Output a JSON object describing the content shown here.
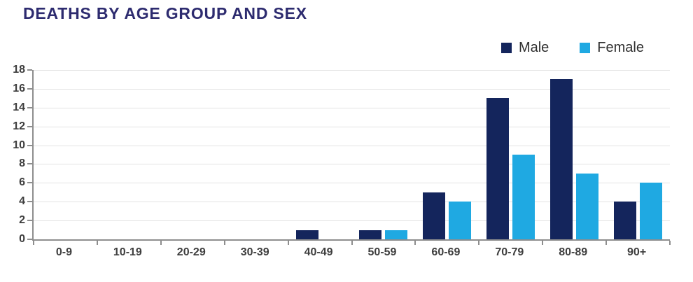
{
  "page": {
    "title": "DEATHS BY AGE GROUP AND SEX"
  },
  "colors": {
    "title": "#2d2b6f",
    "male_bar": "#14255c",
    "female_bar": "#1fa9e2",
    "axis_line": "#8e8e8e",
    "gridline": "#e3e3e3",
    "axis_text": "#3e3e3e",
    "legend_text": "#2f2f2f",
    "background": "#ffffff"
  },
  "chart_data": {
    "type": "bar",
    "title": "DEATHS BY AGE GROUP AND SEX",
    "categories": [
      "0-9",
      "10-19",
      "20-29",
      "30-39",
      "40-49",
      "50-59",
      "60-69",
      "70-79",
      "80-89",
      "90+"
    ],
    "series": [
      {
        "name": "Male",
        "color": "#14255c",
        "values": [
          0,
          0,
          0,
          0,
          1,
          1,
          5,
          15,
          17,
          4
        ]
      },
      {
        "name": "Female",
        "color": "#1fa9e2",
        "values": [
          0,
          0,
          0,
          0,
          0,
          1,
          4,
          9,
          7,
          6
        ]
      }
    ],
    "xlabel": "",
    "ylabel": "",
    "ylim": [
      0,
      18
    ],
    "ytick_step": 2,
    "yticks": [
      0,
      2,
      4,
      6,
      8,
      10,
      12,
      14,
      16,
      18
    ],
    "grid": true,
    "legend_position": "top-right"
  }
}
